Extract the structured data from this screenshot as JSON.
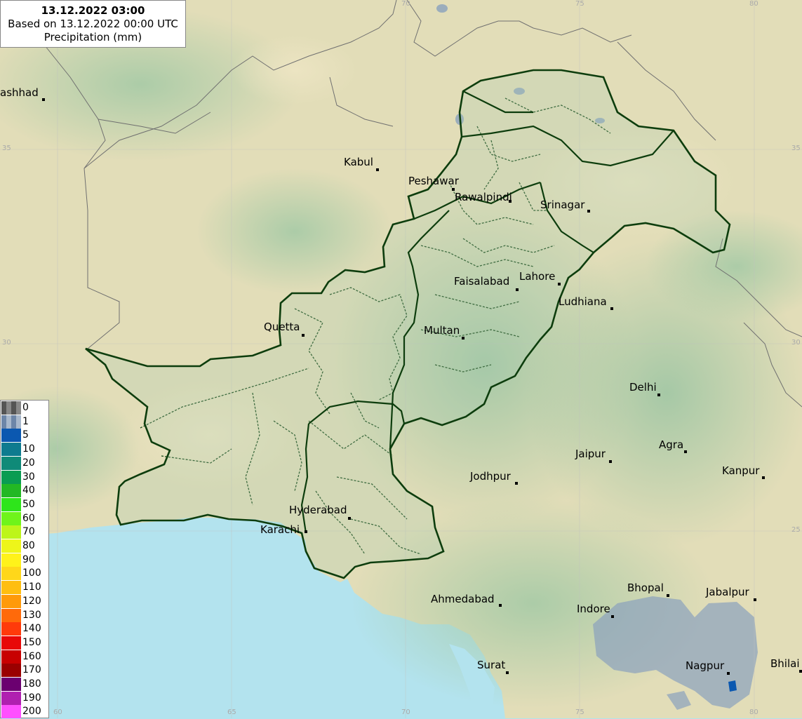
{
  "header": {
    "time": "13.12.2022 03:00",
    "based_on": "Based on 13.12.2022 00:00 UTC",
    "variable": "Precipitation (mm)"
  },
  "legend": [
    {
      "label": "0",
      "color": "#777777"
    },
    {
      "label": "1",
      "color": "#8aa1bd"
    },
    {
      "label": "5",
      "color": "#0b58b0"
    },
    {
      "label": "10",
      "color": "#0e7b8f"
    },
    {
      "label": "20",
      "color": "#0f8a78"
    },
    {
      "label": "30",
      "color": "#0a9c52"
    },
    {
      "label": "40",
      "color": "#23b824"
    },
    {
      "label": "50",
      "color": "#2ee51b"
    },
    {
      "label": "60",
      "color": "#6ff41a"
    },
    {
      "label": "70",
      "color": "#bdf51a"
    },
    {
      "label": "80",
      "color": "#eef51a"
    },
    {
      "label": "90",
      "color": "#fff21a"
    },
    {
      "label": "100",
      "color": "#ffd71a"
    },
    {
      "label": "110",
      "color": "#ffbe10"
    },
    {
      "label": "120",
      "color": "#ff9a0a"
    },
    {
      "label": "130",
      "color": "#ff6a0a"
    },
    {
      "label": "140",
      "color": "#ff3a0a"
    },
    {
      "label": "150",
      "color": "#e80808"
    },
    {
      "label": "160",
      "color": "#c80000"
    },
    {
      "label": "170",
      "color": "#9a0000"
    },
    {
      "label": "180",
      "color": "#6b0070"
    },
    {
      "label": "190",
      "color": "#b020b0"
    },
    {
      "label": "200",
      "color": "#ff50ff"
    }
  ],
  "cities": [
    {
      "name": "ashhad"
    },
    {
      "name": "Kabul"
    },
    {
      "name": "Peshawar"
    },
    {
      "name": "Rawalpindi"
    },
    {
      "name": "Srinagar"
    },
    {
      "name": "Faisalabad"
    },
    {
      "name": "Lahore"
    },
    {
      "name": "Ludhiana"
    },
    {
      "name": "Quetta"
    },
    {
      "name": "Multan"
    },
    {
      "name": "Delhi"
    },
    {
      "name": "Jaipur"
    },
    {
      "name": "Agra"
    },
    {
      "name": "Jodhpur"
    },
    {
      "name": "Kanpur"
    },
    {
      "name": "Hyderabad"
    },
    {
      "name": "Karachi"
    },
    {
      "name": "Ahmedabad"
    },
    {
      "name": "Bhopal"
    },
    {
      "name": "Jabalpur"
    },
    {
      "name": "Indore"
    },
    {
      "name": "Surat"
    },
    {
      "name": "Nagpur"
    },
    {
      "name": "Bhilai"
    }
  ],
  "grid_labels": {
    "lon": [
      "70",
      "75",
      "80",
      "60",
      "65",
      "70",
      "75",
      "80"
    ],
    "lat": [
      "35",
      "35",
      "30",
      "30",
      "25"
    ]
  },
  "colors": {
    "sea": "#b3e3ee",
    "land": "#e2ddb8",
    "pakistan_border": "#0d3d0d",
    "precip_light": "#8aa1bd"
  }
}
